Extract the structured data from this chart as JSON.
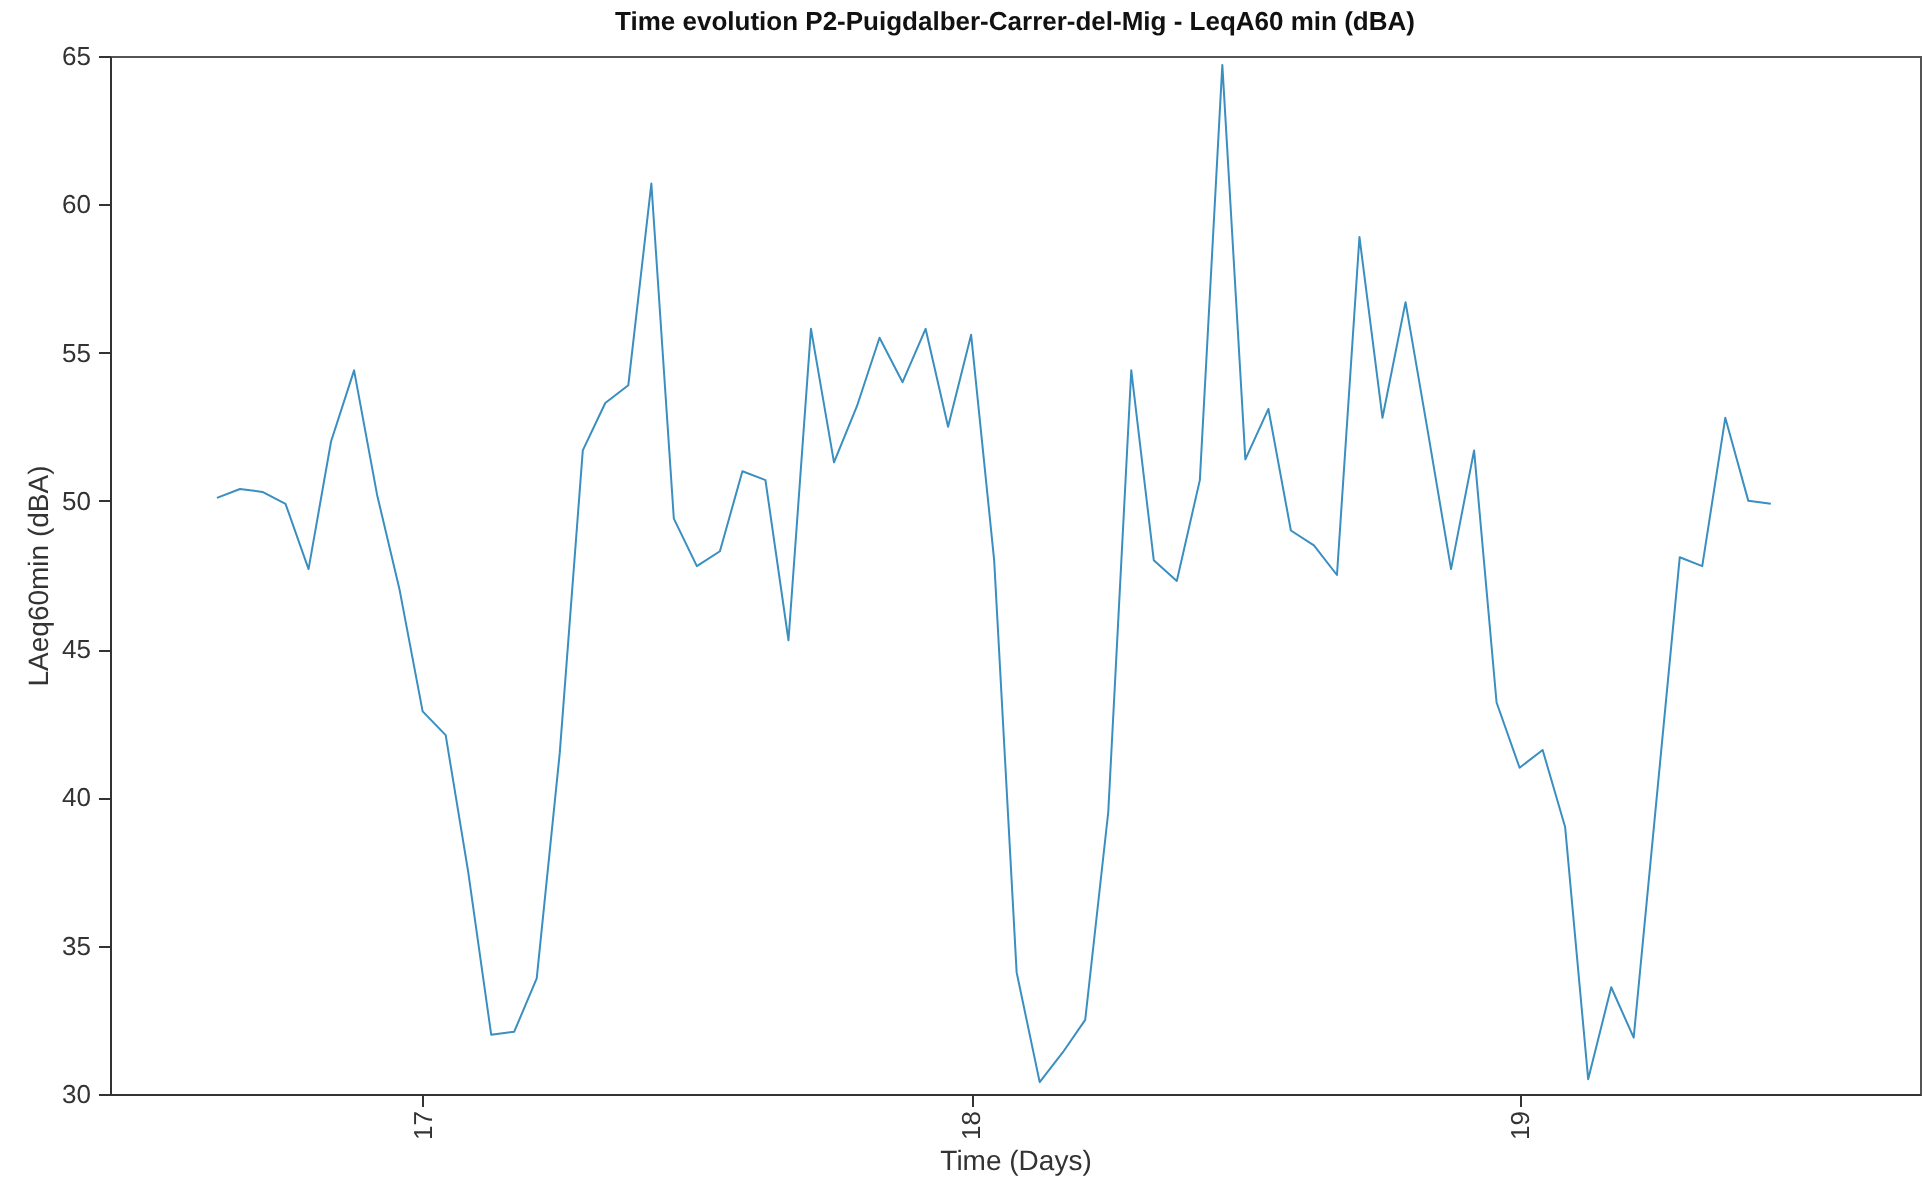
{
  "chart_data": {
    "type": "line",
    "title": "Time evolution P2-Puigdalber-Carrer-del-Mig - LeqA60 min (dBA)",
    "xlabel": "Time (Days)",
    "ylabel": "LAeq60min (dBA)",
    "x": [
      16.625,
      16.667,
      16.708,
      16.75,
      16.792,
      16.833,
      16.875,
      16.917,
      16.958,
      17,
      17.042,
      17.083,
      17.125,
      17.167,
      17.208,
      17.25,
      17.292,
      17.333,
      17.375,
      17.417,
      17.458,
      17.5,
      17.542,
      17.583,
      17.625,
      17.667,
      17.708,
      17.75,
      17.792,
      17.833,
      17.875,
      17.917,
      17.958,
      18,
      18.042,
      18.083,
      18.125,
      18.167,
      18.208,
      18.25,
      18.292,
      18.333,
      18.375,
      18.417,
      18.458,
      18.5,
      18.542,
      18.583,
      18.625,
      18.667,
      18.708,
      18.75,
      18.792,
      18.833,
      18.875,
      18.917,
      18.958,
      19,
      19.042,
      19.083,
      19.125,
      19.167,
      19.208,
      19.25,
      19.292,
      19.333,
      19.375,
      19.417,
      19.458
    ],
    "series": [
      {
        "color": "#3a8fc0",
        "values": [
          50.1,
          50.4,
          50.3,
          49.9,
          47.7,
          52.0,
          54.4,
          50.2,
          47.0,
          42.9,
          42.1,
          37.5,
          32.0,
          32.1,
          33.9,
          41.5,
          51.7,
          53.3,
          53.9,
          60.7,
          49.4,
          47.8,
          48.3,
          51.0,
          50.7,
          45.3,
          55.8,
          51.3,
          53.2,
          55.5,
          54.0,
          55.8,
          52.5,
          55.6,
          48.0,
          34.1,
          30.4,
          31.4,
          32.5,
          39.5,
          54.4,
          48.0,
          47.3,
          50.7,
          64.7,
          51.4,
          53.1,
          49.0,
          48.5,
          47.5,
          58.9,
          52.8,
          56.7,
          52.3,
          47.7,
          51.7,
          43.2,
          41.0,
          41.6,
          39.0,
          30.5,
          33.6,
          31.9,
          40.0,
          48.1,
          47.8,
          52.8,
          50.0,
          49.9
        ]
      }
    ],
    "xlim": [
      16.43,
      19.73
    ],
    "xticks": [
      17,
      18,
      19
    ],
    "ylim": [
      30,
      65
    ],
    "yticks": [
      30,
      35,
      40,
      45,
      50,
      55,
      60,
      65
    ],
    "grid": false,
    "legend": false,
    "marker": "none",
    "line_style": "solid"
  }
}
